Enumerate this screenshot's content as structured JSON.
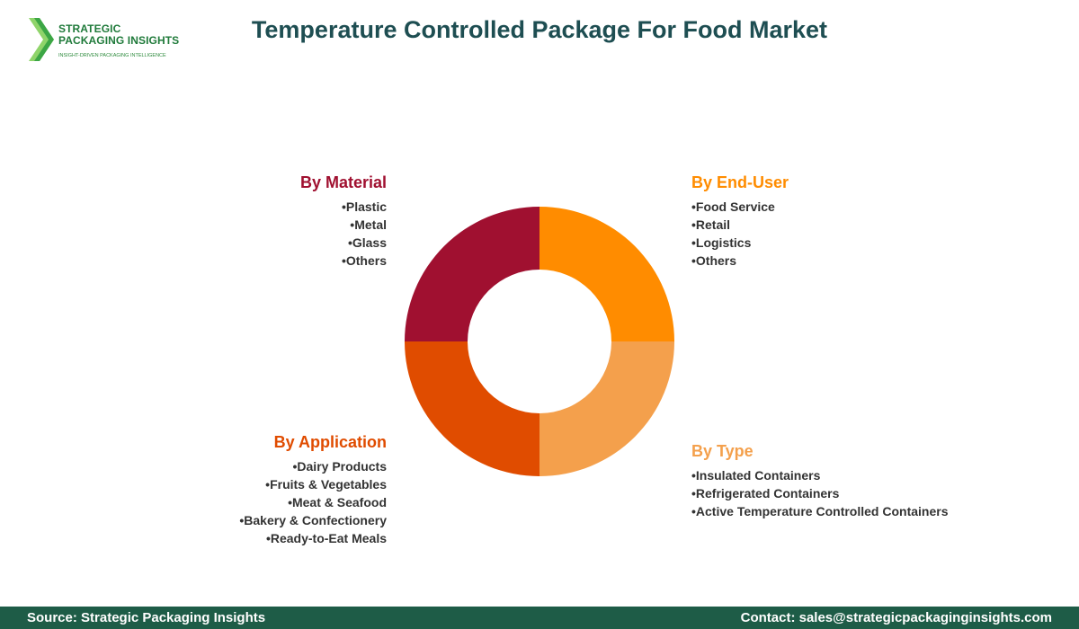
{
  "header": {
    "title": "Temperature Controlled Package For Food Market"
  },
  "logo": {
    "line1": "STRATEGIC",
    "line2": "PACKAGING INSIGHTS",
    "tagline": "INSIGHT-DRIVEN PACKAGING INTELLIGENCE"
  },
  "segments": [
    {
      "title": "By Material",
      "color": "#a01030",
      "items": [
        "Plastic",
        "Metal",
        "Glass",
        "Others"
      ]
    },
    {
      "title": "By End-User",
      "color": "#ff8c00",
      "items": [
        "Food Service",
        "Retail",
        "Logistics",
        "Others"
      ]
    },
    {
      "title": "By Application",
      "color": "#e04c00",
      "items": [
        "Dairy Products",
        "Fruits & Vegetables",
        "Meat & Seafood",
        "Bakery & Confectionery",
        "Ready-to-Eat Meals"
      ]
    },
    {
      "title": "By Type",
      "color": "#f4a04c",
      "items": [
        "Insulated Containers",
        "Refrigerated Containers",
        "Active Temperature Controlled Containers"
      ]
    }
  ],
  "footer": {
    "source": "Source: Strategic Packaging Insights",
    "contact": "Contact: sales@strategicpackaginginsights.com"
  }
}
